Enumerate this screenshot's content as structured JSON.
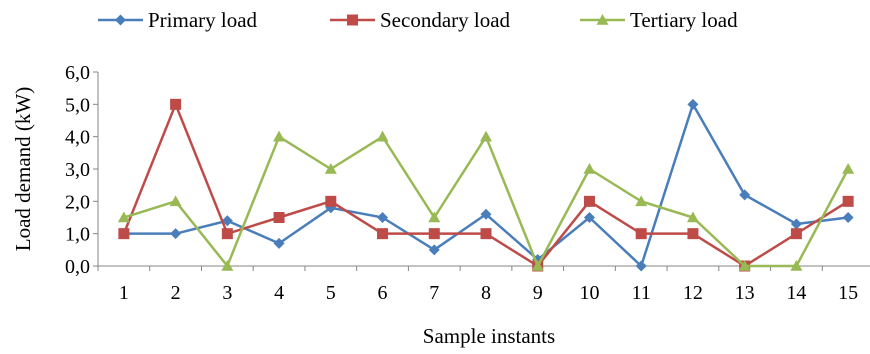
{
  "chart_data": {
    "type": "line",
    "xlabel": "Sample instants",
    "ylabel": "Load demand (kW)",
    "categories": [
      "1",
      "2",
      "3",
      "4",
      "5",
      "6",
      "7",
      "8",
      "9",
      "10",
      "11",
      "12",
      "13",
      "14",
      "15"
    ],
    "ylim": [
      0,
      6
    ],
    "yticks": [
      "0,0",
      "1,0",
      "2,0",
      "3,0",
      "4,0",
      "5,0",
      "6,0"
    ],
    "grid": false,
    "legend_position": "top",
    "series": [
      {
        "name": "Primary load",
        "color": "#4a7ebb",
        "marker": "diamond",
        "values": [
          1.0,
          1.0,
          1.4,
          0.7,
          1.8,
          1.5,
          0.5,
          1.6,
          0.2,
          1.5,
          0.0,
          5.0,
          2.2,
          1.3,
          1.5
        ]
      },
      {
        "name": "Secondary load",
        "color": "#be4b48",
        "marker": "square",
        "values": [
          1.0,
          5.0,
          1.0,
          1.5,
          2.0,
          1.0,
          1.0,
          1.0,
          0.0,
          2.0,
          1.0,
          1.0,
          0.0,
          1.0,
          2.0
        ]
      },
      {
        "name": "Tertiary load",
        "color": "#98b954",
        "marker": "triangle",
        "values": [
          1.5,
          2.0,
          0.0,
          4.0,
          3.0,
          4.0,
          1.5,
          4.0,
          0.0,
          3.0,
          2.0,
          1.5,
          0.0,
          0.0,
          3.0
        ]
      }
    ]
  }
}
